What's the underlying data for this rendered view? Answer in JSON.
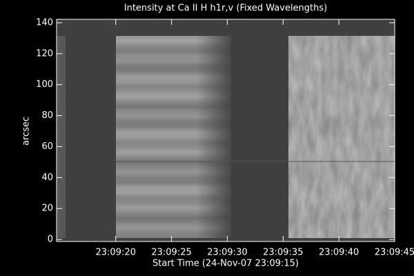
{
  "chart_data": {
    "type": "image",
    "title": "Intensity at Ca II H h1r,v (Fixed Wavelengths)",
    "xlabel": "Start Time (24-Nov-07 23:09:15)",
    "ylabel": "arcsec",
    "xlim": [
      14.7,
      45
    ],
    "xticks": [
      {
        "value": 20,
        "label": "23:09:20"
      },
      {
        "value": 25,
        "label": "23:09:25"
      },
      {
        "value": 30,
        "label": "23:09:30"
      },
      {
        "value": 35,
        "label": "23:09:35"
      },
      {
        "value": 40,
        "label": "23:09:40"
      },
      {
        "value": 45,
        "label": "23:09:45"
      }
    ],
    "ylim": [
      -1.3,
      142.2
    ],
    "yticks": [
      0,
      20,
      40,
      60,
      80,
      100,
      120,
      140
    ]
  }
}
